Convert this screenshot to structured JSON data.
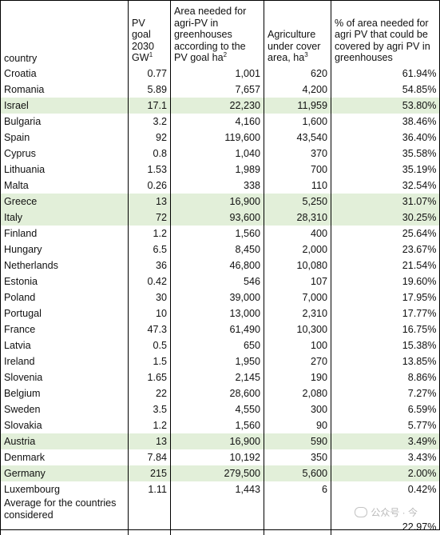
{
  "headers": {
    "country": "country",
    "pv_goal_lines": [
      "PV",
      "goal",
      "2030",
      "GW"
    ],
    "pv_goal_sup": "1",
    "area_needed_text": "Area needed for agri-PV in greenhouses according to the PV goal ha",
    "area_needed_sup": "2",
    "agri_cover_text": "Agriculture under cover area, ha",
    "agri_cover_sup": "3",
    "pct_text": "% of area needed for agri PV that could be covered by agri PV in greenhouses"
  },
  "rows": [
    {
      "country": "Croatia",
      "pv": "0.77",
      "area": "1,001",
      "cover": "620",
      "pct": "61.94%",
      "highlight": false
    },
    {
      "country": "Romania",
      "pv": "5.89",
      "area": "7,657",
      "cover": "4,200",
      "pct": "54.85%",
      "highlight": false
    },
    {
      "country": "Israel",
      "pv": "17.1",
      "area": "22,230",
      "cover": "11,959",
      "pct": "53.80%",
      "highlight": true
    },
    {
      "country": "Bulgaria",
      "pv": "3.2",
      "area": "4,160",
      "cover": "1,600",
      "pct": "38.46%",
      "highlight": false
    },
    {
      "country": "Spain",
      "pv": "92",
      "area": "119,600",
      "cover": "43,540",
      "pct": "36.40%",
      "highlight": false
    },
    {
      "country": "Cyprus",
      "pv": "0.8",
      "area": "1,040",
      "cover": "370",
      "pct": "35.58%",
      "highlight": false
    },
    {
      "country": "Lithuania",
      "pv": "1.53",
      "area": "1,989",
      "cover": "700",
      "pct": "35.19%",
      "highlight": false
    },
    {
      "country": "Malta",
      "pv": "0.26",
      "area": "338",
      "cover": "110",
      "pct": "32.54%",
      "highlight": false
    },
    {
      "country": "Greece",
      "pv": "13",
      "area": "16,900",
      "cover": "5,250",
      "pct": "31.07%",
      "highlight": true
    },
    {
      "country": "Italy",
      "pv": "72",
      "area": "93,600",
      "cover": "28,310",
      "pct": "30.25%",
      "highlight": true
    },
    {
      "country": "Finland",
      "pv": "1.2",
      "area": "1,560",
      "cover": "400",
      "pct": "25.64%",
      "highlight": false
    },
    {
      "country": "Hungary",
      "pv": "6.5",
      "area": "8,450",
      "cover": "2,000",
      "pct": "23.67%",
      "highlight": false
    },
    {
      "country": "Netherlands",
      "pv": "36",
      "area": "46,800",
      "cover": "10,080",
      "pct": "21.54%",
      "highlight": false
    },
    {
      "country": "Estonia",
      "pv": "0.42",
      "area": "546",
      "cover": "107",
      "pct": "19.60%",
      "highlight": false
    },
    {
      "country": "Poland",
      "pv": "30",
      "area": "39,000",
      "cover": "7,000",
      "pct": "17.95%",
      "highlight": false
    },
    {
      "country": "Portugal",
      "pv": "10",
      "area": "13,000",
      "cover": "2,310",
      "pct": "17.77%",
      "highlight": false
    },
    {
      "country": "France",
      "pv": "47.3",
      "area": "61,490",
      "cover": "10,300",
      "pct": "16.75%",
      "highlight": false
    },
    {
      "country": "Latvia",
      "pv": "0.5",
      "area": "650",
      "cover": "100",
      "pct": "15.38%",
      "highlight": false
    },
    {
      "country": "Ireland",
      "pv": "1.5",
      "area": "1,950",
      "cover": "270",
      "pct": "13.85%",
      "highlight": false
    },
    {
      "country": "Slovenia",
      "pv": "1.65",
      "area": "2,145",
      "cover": "190",
      "pct": "8.86%",
      "highlight": false
    },
    {
      "country": "Belgium",
      "pv": "22",
      "area": "28,600",
      "cover": "2,080",
      "pct": "7.27%",
      "highlight": false
    },
    {
      "country": "Sweden",
      "pv": "3.5",
      "area": "4,550",
      "cover": "300",
      "pct": "6.59%",
      "highlight": false
    },
    {
      "country": "Slovakia",
      "pv": "1.2",
      "area": "1,560",
      "cover": "90",
      "pct": "5.77%",
      "highlight": false
    },
    {
      "country": "Austria",
      "pv": "13",
      "area": "16,900",
      "cover": "590",
      "pct": "3.49%",
      "highlight": true
    },
    {
      "country": "Denmark",
      "pv": "7.84",
      "area": "10,192",
      "cover": "350",
      "pct": "3.43%",
      "highlight": false
    },
    {
      "country": "Germany",
      "pv": "215",
      "area": "279,500",
      "cover": "5,600",
      "pct": "2.00%",
      "highlight": true
    },
    {
      "country": "Luxembourg",
      "pv": "1.11",
      "area": "1,443",
      "cover": "6",
      "pct": "0.42%",
      "highlight": false
    }
  ],
  "average": {
    "label": "Average for the countries considered",
    "pct": "22.97%"
  },
  "watermark": "公众号 · 今",
  "colors": {
    "highlight": "#e2efd9",
    "border": "#000000"
  }
}
